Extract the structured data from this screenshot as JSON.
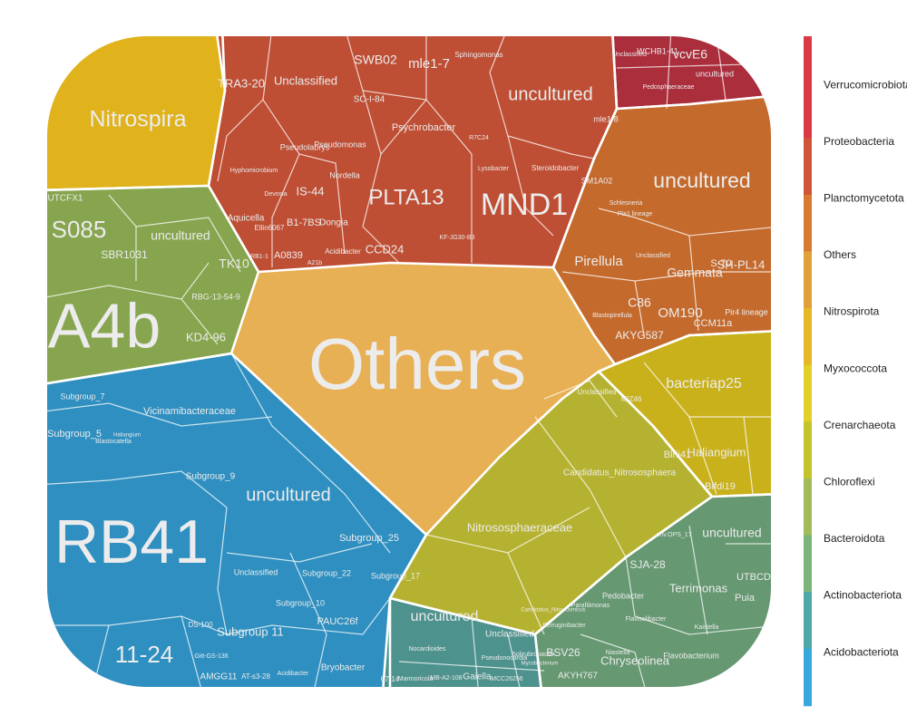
{
  "chart_data": {
    "type": "voronoi-treemap",
    "title": "",
    "legend": {
      "placement": "right",
      "items": [
        {
          "name": "Verrucomicrobiota",
          "color": "#D93A45"
        },
        {
          "name": "Proteobacteria",
          "color": "#CF5638"
        },
        {
          "name": "Planctomycetota",
          "color": "#D97A32"
        },
        {
          "name": "Others",
          "color": "#E2A03A"
        },
        {
          "name": "Nitrospirota",
          "color": "#E4B826"
        },
        {
          "name": "Myxococcota",
          "color": "#E2D02A"
        },
        {
          "name": "Crenarchaeota",
          "color": "#C5C32B"
        },
        {
          "name": "Chloroflexi",
          "color": "#A3BC5B"
        },
        {
          "name": "Bacteroidota",
          "color": "#7CB57A"
        },
        {
          "name": "Actinobacteriota",
          "color": "#4FA7A6"
        },
        {
          "name": "Acidobacteriota",
          "color": "#37A8DC"
        }
      ]
    },
    "groups": [
      {
        "phylum": "Others",
        "color": "#E8B055",
        "cells": [
          {
            "label": "Others",
            "size": 70
          }
        ]
      },
      {
        "phylum": "Nitrospirota",
        "color": "#E0B21B",
        "cells": [
          {
            "label": "Nitrospira",
            "size": 30
          }
        ]
      },
      {
        "phylum": "Chloroflexi",
        "color": "#86A54E",
        "cells": [
          {
            "label": "A4b",
            "size": 60
          },
          {
            "label": "S085",
            "size": 22
          },
          {
            "label": "uncultured",
            "size": 14
          },
          {
            "label": "SBR1031",
            "size": 10
          },
          {
            "label": "TK10",
            "size": 12
          },
          {
            "label": "RBG-13-54-9",
            "size": 8
          },
          {
            "label": "KD4-96",
            "size": 10
          },
          {
            "label": "UTCFX1",
            "size": 8
          }
        ]
      },
      {
        "phylum": "Proteobacteria",
        "color": "#BE4E34",
        "cells": [
          {
            "label": "MND1",
            "size": 28
          },
          {
            "label": "PLTA13",
            "size": 24
          },
          {
            "label": "uncultured",
            "size": 20
          },
          {
            "label": "mle1-7",
            "size": 14
          },
          {
            "label": "SWB02",
            "size": 12
          },
          {
            "label": "Unclassified",
            "size": 12
          },
          {
            "label": "TRA3-20",
            "size": 12
          },
          {
            "label": "Psychrobacter",
            "size": 10
          },
          {
            "label": "SC-I-84",
            "size": 10
          },
          {
            "label": "IS-44",
            "size": 10
          },
          {
            "label": "B1-7BS",
            "size": 10
          },
          {
            "label": "Dongia",
            "size": 8
          },
          {
            "label": "CCD24",
            "size": 10
          },
          {
            "label": "A0839",
            "size": 9
          },
          {
            "label": "Aquicella",
            "size": 9
          },
          {
            "label": "Pseudolabrys",
            "size": 8
          },
          {
            "label": "Pseudomonas",
            "size": 7
          },
          {
            "label": "Nordella",
            "size": 7
          },
          {
            "label": "Ellin6067",
            "size": 6
          },
          {
            "label": "Acidibacter",
            "size": 6
          },
          {
            "label": "Sphingomonas",
            "size": 6
          },
          {
            "label": "Steroidobacter",
            "size": 5
          },
          {
            "label": "KF-JG30-B3",
            "size": 5
          },
          {
            "label": "Hyphomicrobium",
            "size": 5
          },
          {
            "label": "Devosia",
            "size": 5
          },
          {
            "label": "R7C24",
            "size": 5
          },
          {
            "label": "Lysobacter",
            "size": 5
          },
          {
            "label": "A21b",
            "size": 5
          },
          {
            "label": "RB1-1",
            "size": 5
          }
        ]
      },
      {
        "phylum": "Verrucomicrobiota",
        "color": "#AA2E3C",
        "cells": [
          {
            "label": "vcvE6",
            "size": 10
          },
          {
            "label": "WCHB1-41",
            "size": 8
          },
          {
            "label": "Unclassified",
            "size": 7
          },
          {
            "label": "Pedosphaeraceae",
            "size": 7
          },
          {
            "label": "uncultured",
            "size": 7
          }
        ]
      },
      {
        "phylum": "Planctomycetota",
        "color": "#C46A2C",
        "cells": [
          {
            "label": "uncultured",
            "size": 30
          },
          {
            "label": "Pirellula",
            "size": 14
          },
          {
            "label": "OM190",
            "size": 12
          },
          {
            "label": "Gemmata",
            "size": 10
          },
          {
            "label": "AKYG587",
            "size": 9
          },
          {
            "label": "C86",
            "size": 9
          },
          {
            "label": "SH-PL14",
            "size": 8
          },
          {
            "label": "CCM11a",
            "size": 7
          },
          {
            "label": "Pir4 lineage",
            "size": 7
          },
          {
            "label": "mle1-8",
            "size": 6
          },
          {
            "label": "SM1A02",
            "size": 7
          },
          {
            "label": "Blastopirellula",
            "size": 6
          },
          {
            "label": "Unclassified",
            "size": 6
          },
          {
            "label": "Schlesneria",
            "size": 5
          },
          {
            "label": "S-70",
            "size": 5
          },
          {
            "label": "Pla1 lineage",
            "size": 5
          }
        ]
      },
      {
        "phylum": "Myxococcota",
        "color": "#C9B11C",
        "cells": [
          {
            "label": "bacteriap25",
            "size": 22
          },
          {
            "label": "Haliangium",
            "size": 14
          },
          {
            "label": "Blrii41",
            "size": 10
          },
          {
            "label": "Blfdi19",
            "size": 9
          },
          {
            "label": "MIZ46",
            "size": 6
          }
        ]
      },
      {
        "phylum": "Crenarchaeota",
        "color": "#B6B231",
        "cells": [
          {
            "label": "Nitrososphaeraceae",
            "size": 30
          },
          {
            "label": "Candidatus_Nitrososphaera",
            "size": 24
          },
          {
            "label": "Unclassified",
            "size": 10
          },
          {
            "label": "Candidatus_Nitrocosmicus",
            "size": 10
          }
        ]
      },
      {
        "phylum": "Bacteroidota",
        "color": "#669872",
        "cells": [
          {
            "label": "uncultured",
            "size": 22
          },
          {
            "label": "Terrimonas",
            "size": 14
          },
          {
            "label": "Chryseolinea",
            "size": 14
          },
          {
            "label": "SJA-28",
            "size": 10
          },
          {
            "label": "UTBCD1",
            "size": 8
          },
          {
            "label": "Puia",
            "size": 7
          },
          {
            "label": "Pedobacter",
            "size": 7
          },
          {
            "label": "Flavobacterium",
            "size": 7
          },
          {
            "label": "AKYH767",
            "size": 8
          },
          {
            "label": "BSV26",
            "size": 8
          },
          {
            "label": "Ferruginibacter",
            "size": 5
          },
          {
            "label": "Kaistella",
            "size": 5
          },
          {
            "label": "Flavisolibacter",
            "size": 5
          },
          {
            "label": "env.OPS_17",
            "size": 5
          },
          {
            "label": "Niastella",
            "size": 5
          },
          {
            "label": "Parafilimonas",
            "size": 5
          }
        ]
      },
      {
        "phylum": "Actinobacteriota",
        "color": "#4D928D",
        "cells": [
          {
            "label": "uncultured",
            "size": 22
          },
          {
            "label": "Unclassified",
            "size": 12
          },
          {
            "label": "Gaiella",
            "size": 9
          },
          {
            "label": "MB-A2-108",
            "size": 8
          },
          {
            "label": "IMCC26256",
            "size": 8
          },
          {
            "label": "67-14",
            "size": 7
          },
          {
            "label": "Nocardioides",
            "size": 6
          },
          {
            "label": "Solirubrobacter",
            "size": 6
          },
          {
            "label": "Marmoricola",
            "size": 5
          },
          {
            "label": "Mycobacterium",
            "size": 5
          },
          {
            "label": "Pseudonocardia",
            "size": 5
          }
        ]
      },
      {
        "phylum": "Acidobacteriota",
        "color": "#2E8FC0",
        "cells": [
          {
            "label": "RB41",
            "size": 70
          },
          {
            "label": "uncultured",
            "size": 26
          },
          {
            "label": "11-24",
            "size": 22
          },
          {
            "label": "Vicinamibacteraceae",
            "size": 20
          },
          {
            "label": "Subgroup_5",
            "size": 10
          },
          {
            "label": "Subgroup_7",
            "size": 9
          },
          {
            "label": "Subgroup_9",
            "size": 10
          },
          {
            "label": "Subgroup_25",
            "size": 10
          },
          {
            "label": "Subgroup_22",
            "size": 9
          },
          {
            "label": "Subgroup_17",
            "size": 9
          },
          {
            "label": "Subgroup_10",
            "size": 12
          },
          {
            "label": "Subgroup 11",
            "size": 8
          },
          {
            "label": "PAUC26f",
            "size": 9
          },
          {
            "label": "Unclassified",
            "size": 9
          },
          {
            "label": "Bryobacter",
            "size": 9
          },
          {
            "label": "AMGG11",
            "size": 8
          },
          {
            "label": "AT-s3-28",
            "size": 7
          },
          {
            "label": "Acidibacter",
            "size": 6
          },
          {
            "label": "DS-100",
            "size": 6
          },
          {
            "label": "Blastocatella",
            "size": 5
          },
          {
            "label": "Gitt-GS-136",
            "size": 5
          },
          {
            "label": "Haliangium",
            "size": 4
          }
        ]
      }
    ]
  }
}
